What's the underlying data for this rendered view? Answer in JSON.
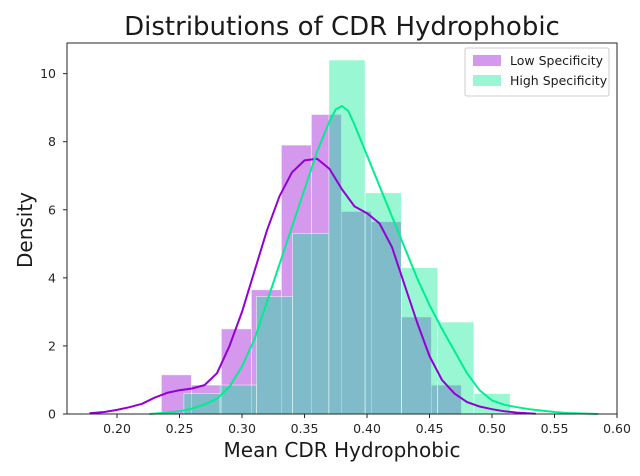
{
  "chart_data": {
    "type": "histogram",
    "title": "Distributions of CDR Hydrophobic",
    "xlabel": "Mean CDR Hydrophobic",
    "ylabel": "Density",
    "xlim": [
      0.16,
      0.6
    ],
    "ylim": [
      0,
      10.9
    ],
    "xticks": [
      "0.20",
      "0.25",
      "0.30",
      "0.35",
      "0.40",
      "0.45",
      "0.50",
      "0.55",
      "0.60"
    ],
    "xtick_values": [
      0.2,
      0.25,
      0.3,
      0.35,
      0.4,
      0.45,
      0.5,
      0.55,
      0.6
    ],
    "yticks": [
      "0",
      "2",
      "4",
      "6",
      "8",
      "10"
    ],
    "ytick_values": [
      0,
      2,
      4,
      6,
      8,
      10
    ],
    "grid": false,
    "legend_position": "top-right",
    "series": [
      {
        "name": "Low Specificity",
        "color": "#9400D3",
        "bins": [
          {
            "x0": 0.2355,
            "x1": 0.2595,
            "value": 1.15
          },
          {
            "x0": 0.2595,
            "x1": 0.2835,
            "value": 0.85
          },
          {
            "x0": 0.2835,
            "x1": 0.3075,
            "value": 2.5
          },
          {
            "x0": 0.3075,
            "x1": 0.3315,
            "value": 3.65
          },
          {
            "x0": 0.3315,
            "x1": 0.3555,
            "value": 7.9
          },
          {
            "x0": 0.3555,
            "x1": 0.3795,
            "value": 8.8
          },
          {
            "x0": 0.3795,
            "x1": 0.4035,
            "value": 5.95
          },
          {
            "x0": 0.4035,
            "x1": 0.4275,
            "value": 5.65
          },
          {
            "x0": 0.4275,
            "x1": 0.4515,
            "value": 2.85
          },
          {
            "x0": 0.4515,
            "x1": 0.4755,
            "value": 0.85
          }
        ],
        "kde": [
          [
            0.178,
            0.02
          ],
          [
            0.19,
            0.06
          ],
          [
            0.2,
            0.12
          ],
          [
            0.21,
            0.2
          ],
          [
            0.22,
            0.3
          ],
          [
            0.23,
            0.48
          ],
          [
            0.24,
            0.62
          ],
          [
            0.25,
            0.7
          ],
          [
            0.26,
            0.75
          ],
          [
            0.27,
            0.85
          ],
          [
            0.28,
            1.2
          ],
          [
            0.29,
            2.0
          ],
          [
            0.3,
            3.0
          ],
          [
            0.31,
            4.2
          ],
          [
            0.32,
            5.4
          ],
          [
            0.33,
            6.4
          ],
          [
            0.34,
            7.1
          ],
          [
            0.35,
            7.45
          ],
          [
            0.36,
            7.5
          ],
          [
            0.37,
            7.2
          ],
          [
            0.38,
            6.6
          ],
          [
            0.39,
            6.1
          ],
          [
            0.4,
            5.9
          ],
          [
            0.41,
            5.6
          ],
          [
            0.42,
            4.9
          ],
          [
            0.43,
            3.8
          ],
          [
            0.44,
            2.7
          ],
          [
            0.45,
            1.7
          ],
          [
            0.46,
            1.0
          ],
          [
            0.47,
            0.6
          ],
          [
            0.48,
            0.35
          ],
          [
            0.49,
            0.22
          ],
          [
            0.5,
            0.14
          ],
          [
            0.51,
            0.08
          ],
          [
            0.52,
            0.04
          ],
          [
            0.535,
            0.01
          ]
        ]
      },
      {
        "name": "High Specificity",
        "color": "#00EE90",
        "bins": [
          {
            "x0": 0.2535,
            "x1": 0.2825,
            "value": 0.6
          },
          {
            "x0": 0.2825,
            "x1": 0.3115,
            "value": 0.85
          },
          {
            "x0": 0.3115,
            "x1": 0.3405,
            "value": 3.45
          },
          {
            "x0": 0.3405,
            "x1": 0.3695,
            "value": 5.3
          },
          {
            "x0": 0.3695,
            "x1": 0.3985,
            "value": 10.4
          },
          {
            "x0": 0.3985,
            "x1": 0.4275,
            "value": 6.5
          },
          {
            "x0": 0.4275,
            "x1": 0.4565,
            "value": 4.3
          },
          {
            "x0": 0.4565,
            "x1": 0.4855,
            "value": 2.7
          },
          {
            "x0": 0.4855,
            "x1": 0.5145,
            "value": 0.6
          }
        ],
        "kde": [
          [
            0.226,
            0.0
          ],
          [
            0.24,
            0.04
          ],
          [
            0.25,
            0.08
          ],
          [
            0.26,
            0.16
          ],
          [
            0.27,
            0.28
          ],
          [
            0.28,
            0.45
          ],
          [
            0.29,
            0.8
          ],
          [
            0.3,
            1.4
          ],
          [
            0.31,
            2.2
          ],
          [
            0.32,
            3.3
          ],
          [
            0.33,
            4.4
          ],
          [
            0.34,
            5.5
          ],
          [
            0.35,
            6.6
          ],
          [
            0.36,
            7.7
          ],
          [
            0.37,
            8.6
          ],
          [
            0.375,
            8.95
          ],
          [
            0.38,
            9.05
          ],
          [
            0.385,
            8.9
          ],
          [
            0.39,
            8.5
          ],
          [
            0.4,
            7.6
          ],
          [
            0.41,
            6.7
          ],
          [
            0.42,
            5.8
          ],
          [
            0.43,
            4.9
          ],
          [
            0.44,
            4.0
          ],
          [
            0.45,
            3.2
          ],
          [
            0.46,
            2.5
          ],
          [
            0.47,
            1.85
          ],
          [
            0.48,
            1.2
          ],
          [
            0.49,
            0.7
          ],
          [
            0.5,
            0.4
          ],
          [
            0.51,
            0.27
          ],
          [
            0.52,
            0.2
          ],
          [
            0.53,
            0.14
          ],
          [
            0.54,
            0.1
          ],
          [
            0.55,
            0.06
          ],
          [
            0.56,
            0.03
          ],
          [
            0.585,
            0.0
          ]
        ]
      }
    ]
  }
}
